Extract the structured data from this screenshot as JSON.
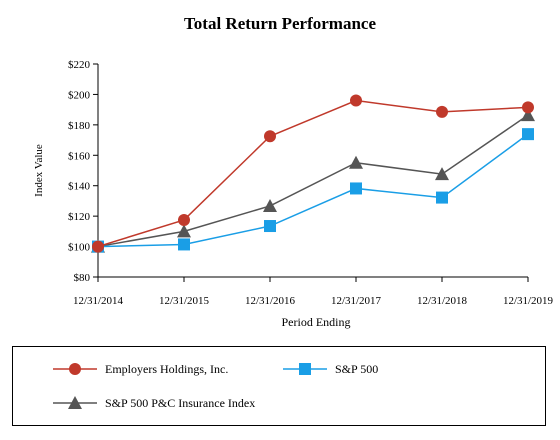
{
  "chart_data": {
    "type": "line",
    "title": "Total Return Performance",
    "xlabel": "Period Ending",
    "ylabel": "Index Value",
    "categories": [
      "12/31/2014",
      "12/31/2015",
      "12/31/2016",
      "12/31/2017",
      "12/31/2018",
      "12/31/2019"
    ],
    "ylim": [
      80,
      220
    ],
    "yticks": [
      "$80",
      "$100",
      "$120",
      "$140",
      "$160",
      "$180",
      "$200",
      "$220"
    ],
    "ytick_values": [
      80,
      100,
      120,
      140,
      160,
      180,
      200,
      220
    ],
    "grid": false,
    "legend_position": "bottom",
    "series": [
      {
        "name": "Employers Holdings, Inc.",
        "values": [
          100,
          117.5,
          172.5,
          196,
          188.5,
          191.5
        ],
        "color": "#c0392b",
        "marker": "circle"
      },
      {
        "name": "S&P 500",
        "values": [
          100,
          101.4,
          113.5,
          138.2,
          132.2,
          173.9
        ],
        "color": "#1a9ee6",
        "marker": "square"
      },
      {
        "name": "S&P 500 P&C Insurance Index",
        "values": [
          100,
          110,
          126.7,
          155.1,
          147.6,
          186.4
        ],
        "color": "#555555",
        "marker": "triangle"
      }
    ]
  }
}
